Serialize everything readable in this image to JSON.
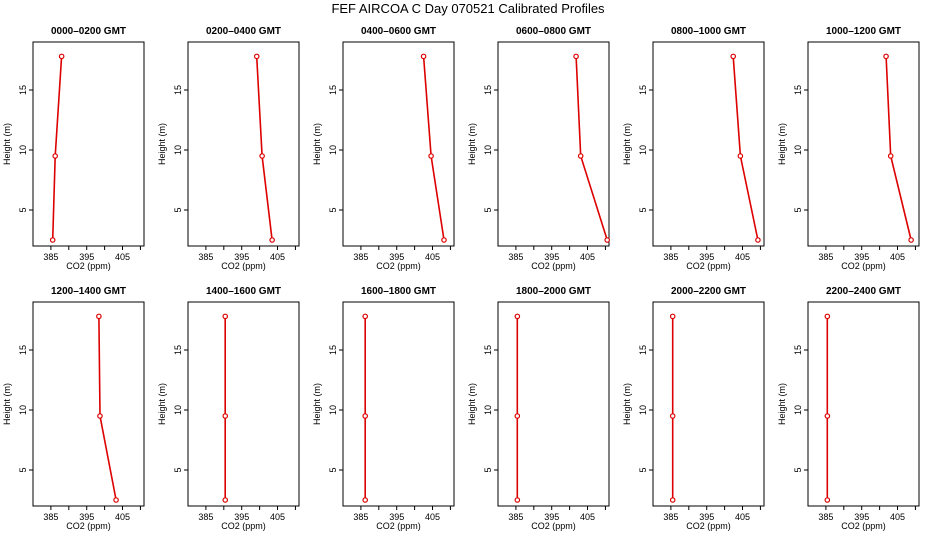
{
  "figure_title": "FEF AIRCOA C  Day 070521  Calibrated Profiles",
  "colors": {
    "series": "#dd0000",
    "axis": "#000000"
  },
  "chart_data": [
    {
      "type": "line",
      "title": "0000–0200 GMT",
      "xlabel": "CO2 (ppm)",
      "ylabel": "Height (m)",
      "xlim": [
        380,
        411
      ],
      "ylim": [
        2,
        19
      ],
      "xticks": [
        385,
        390,
        395,
        400,
        405,
        410
      ],
      "xtick_labels": [
        "385",
        "",
        "395",
        "",
        "405",
        ""
      ],
      "yticks": [
        5,
        10,
        15
      ],
      "x": [
        385.5,
        386.2,
        388.0
      ],
      "y": [
        2.5,
        9.5,
        17.8
      ]
    },
    {
      "type": "line",
      "title": "0200–0400 GMT",
      "xlabel": "CO2 (ppm)",
      "ylabel": "Height (m)",
      "xlim": [
        380,
        411
      ],
      "ylim": [
        2,
        19
      ],
      "xticks": [
        385,
        390,
        395,
        400,
        405,
        410
      ],
      "xtick_labels": [
        "385",
        "",
        "395",
        "",
        "405",
        ""
      ],
      "yticks": [
        5,
        10,
        15
      ],
      "x": [
        403.5,
        400.7,
        399.2
      ],
      "y": [
        2.5,
        9.5,
        17.8
      ]
    },
    {
      "type": "line",
      "title": "0400–0600 GMT",
      "xlabel": "CO2 (ppm)",
      "ylabel": "Height (m)",
      "xlim": [
        380,
        411
      ],
      "ylim": [
        2,
        19
      ],
      "xticks": [
        385,
        390,
        395,
        400,
        405,
        410
      ],
      "xtick_labels": [
        "385",
        "",
        "395",
        "",
        "405",
        ""
      ],
      "yticks": [
        5,
        10,
        15
      ],
      "x": [
        408.2,
        404.6,
        402.5
      ],
      "y": [
        2.5,
        9.5,
        17.8
      ]
    },
    {
      "type": "line",
      "title": "0600–0800 GMT",
      "xlabel": "CO2 (ppm)",
      "ylabel": "Height (m)",
      "xlim": [
        380,
        411
      ],
      "ylim": [
        2,
        19
      ],
      "xticks": [
        385,
        390,
        395,
        400,
        405,
        410
      ],
      "xtick_labels": [
        "385",
        "",
        "395",
        "",
        "405",
        ""
      ],
      "yticks": [
        5,
        10,
        15
      ],
      "x": [
        410.5,
        403.1,
        401.8
      ],
      "y": [
        2.5,
        9.5,
        17.8
      ]
    },
    {
      "type": "line",
      "title": "0800–1000 GMT",
      "xlabel": "CO2 (ppm)",
      "ylabel": "Height (m)",
      "xlim": [
        380,
        411
      ],
      "ylim": [
        2,
        19
      ],
      "xticks": [
        385,
        390,
        395,
        400,
        405,
        410
      ],
      "xtick_labels": [
        "385",
        "",
        "395",
        "",
        "405",
        ""
      ],
      "yticks": [
        5,
        10,
        15
      ],
      "x": [
        409.3,
        404.4,
        402.4
      ],
      "y": [
        2.5,
        9.5,
        17.8
      ]
    },
    {
      "type": "line",
      "title": "1000–1200 GMT",
      "xlabel": "CO2 (ppm)",
      "ylabel": "Height (m)",
      "xlim": [
        380,
        411
      ],
      "ylim": [
        2,
        19
      ],
      "xticks": [
        385,
        390,
        395,
        400,
        405,
        410
      ],
      "xtick_labels": [
        "385",
        "",
        "395",
        "",
        "405",
        ""
      ],
      "yticks": [
        5,
        10,
        15
      ],
      "x": [
        408.8,
        403.1,
        401.8
      ],
      "y": [
        2.5,
        9.5,
        17.8
      ]
    },
    {
      "type": "line",
      "title": "1200–1400 GMT",
      "xlabel": "CO2 (ppm)",
      "ylabel": "Height (m)",
      "xlim": [
        380,
        411
      ],
      "ylim": [
        2,
        19
      ],
      "xticks": [
        385,
        390,
        395,
        400,
        405,
        410
      ],
      "xtick_labels": [
        "385",
        "",
        "395",
        "",
        "405",
        ""
      ],
      "yticks": [
        5,
        10,
        15
      ],
      "x": [
        403.2,
        398.7,
        398.4
      ],
      "y": [
        2.5,
        9.5,
        17.8
      ]
    },
    {
      "type": "line",
      "title": "1400–1600 GMT",
      "xlabel": "CO2 (ppm)",
      "ylabel": "Height (m)",
      "xlim": [
        380,
        411
      ],
      "ylim": [
        2,
        19
      ],
      "xticks": [
        385,
        390,
        395,
        400,
        405,
        410
      ],
      "xtick_labels": [
        "385",
        "",
        "395",
        "",
        "405",
        ""
      ],
      "yticks": [
        5,
        10,
        15
      ],
      "x": [
        390.4,
        390.4,
        390.4
      ],
      "y": [
        2.5,
        9.5,
        17.8
      ]
    },
    {
      "type": "line",
      "title": "1600–1800 GMT",
      "xlabel": "CO2 (ppm)",
      "ylabel": "Height (m)",
      "xlim": [
        380,
        411
      ],
      "ylim": [
        2,
        19
      ],
      "xticks": [
        385,
        390,
        395,
        400,
        405,
        410
      ],
      "xtick_labels": [
        "385",
        "",
        "395",
        "",
        "405",
        ""
      ],
      "yticks": [
        5,
        10,
        15
      ],
      "x": [
        386.2,
        386.2,
        386.2
      ],
      "y": [
        2.5,
        9.5,
        17.8
      ]
    },
    {
      "type": "line",
      "title": "1800–2000 GMT",
      "xlabel": "CO2 (ppm)",
      "ylabel": "Height (m)",
      "xlim": [
        380,
        411
      ],
      "ylim": [
        2,
        19
      ],
      "xticks": [
        385,
        390,
        395,
        400,
        405,
        410
      ],
      "xtick_labels": [
        "385",
        "",
        "395",
        "",
        "405",
        ""
      ],
      "yticks": [
        5,
        10,
        15
      ],
      "x": [
        385.4,
        385.4,
        385.4
      ],
      "y": [
        2.5,
        9.5,
        17.8
      ]
    },
    {
      "type": "line",
      "title": "2000–2200 GMT",
      "xlabel": "CO2 (ppm)",
      "ylabel": "Height (m)",
      "xlim": [
        380,
        411
      ],
      "ylim": [
        2,
        19
      ],
      "xticks": [
        385,
        390,
        395,
        400,
        405,
        410
      ],
      "xtick_labels": [
        "385",
        "",
        "395",
        "",
        "405",
        ""
      ],
      "yticks": [
        5,
        10,
        15
      ],
      "x": [
        385.5,
        385.5,
        385.5
      ],
      "y": [
        2.5,
        9.5,
        17.8
      ]
    },
    {
      "type": "line",
      "title": "2200–2400 GMT",
      "xlabel": "CO2 (ppm)",
      "ylabel": "Height (m)",
      "xlim": [
        380,
        411
      ],
      "ylim": [
        2,
        19
      ],
      "xticks": [
        385,
        390,
        395,
        400,
        405,
        410
      ],
      "xtick_labels": [
        "385",
        "",
        "395",
        "",
        "405",
        ""
      ],
      "yticks": [
        5,
        10,
        15
      ],
      "x": [
        385.4,
        385.4,
        385.4
      ],
      "y": [
        2.5,
        9.5,
        17.8
      ]
    }
  ]
}
